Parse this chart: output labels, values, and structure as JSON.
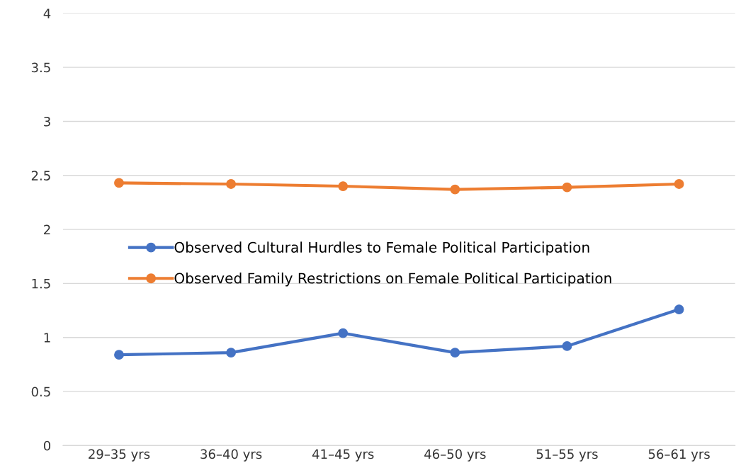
{
  "chart_data": {
    "type": "line",
    "categories": [
      "29–35 yrs",
      "36–40 yrs",
      "41–45 yrs",
      "46–50 yrs",
      "51–55 yrs",
      "56–61 yrs"
    ],
    "series": [
      {
        "name": "Observed Cultural Hurdles to Female Political Participation",
        "color": "#4472c4",
        "values": [
          0.84,
          0.86,
          1.04,
          0.86,
          0.92,
          1.26
        ]
      },
      {
        "name": "Observed Family Restrictions on Female Political Participation",
        "color": "#ed7d31",
        "values": [
          2.43,
          2.42,
          2.4,
          2.37,
          2.39,
          2.42
        ]
      }
    ],
    "ylim": [
      0,
      4
    ],
    "yticks": [
      0,
      0.5,
      1,
      1.5,
      2,
      2.5,
      3,
      3.5,
      4
    ],
    "grid": "y",
    "legend": "center",
    "marker": "circle",
    "line_style": "solid"
  }
}
